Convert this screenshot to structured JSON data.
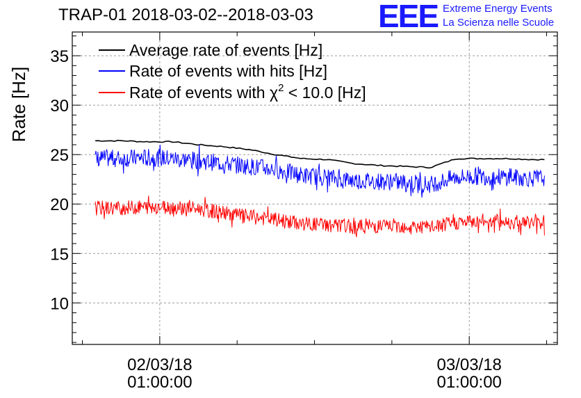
{
  "header": {
    "title": "TRAP-01 2018-03-02--2018-03-03",
    "logo_text": "EEE",
    "org_line1": "Extreme Energy Events",
    "org_line2": "La Scienza nelle Scuole"
  },
  "colors": {
    "average": "#000000",
    "hits": "#0000ff",
    "chi2": "#ff0000",
    "logo": "#1a1aff",
    "grid": "#9a9a9a"
  },
  "chart_data": {
    "type": "line",
    "title": "TRAP-01 2018-03-02--2018-03-03",
    "ylabel": "Rate [Hz]",
    "xlabel": "",
    "ylim": [
      5.8,
      37.4
    ],
    "xlim": [
      "2018-03-01 18:13",
      "2018-03-03 07:50"
    ],
    "yticks": [
      10,
      15,
      20,
      25,
      30,
      35
    ],
    "xticks": [
      {
        "date": "02/03/18",
        "time": "01:00:00",
        "t": "2018-03-02 01:00"
      },
      {
        "date": "03/03/18",
        "time": "01:00:00",
        "t": "2018-03-03 01:00"
      }
    ],
    "grid": true,
    "legend_position": "top-left",
    "series": [
      {
        "name": "Average rate of events [Hz]",
        "label_main": "Average rate of events [Hz]",
        "x": [
          "2018-03-01 22:00",
          "2018-03-02 00:00",
          "2018-03-02 02:00",
          "2018-03-02 04:00",
          "2018-03-02 06:00",
          "2018-03-02 08:00",
          "2018-03-02 10:00",
          "2018-03-02 12:00",
          "2018-03-02 14:00",
          "2018-03-02 16:00",
          "2018-03-02 18:00",
          "2018-03-02 20:00",
          "2018-03-02 22:00",
          "2018-03-03 00:00",
          "2018-03-03 02:00",
          "2018-03-03 04:00",
          "2018-03-03 06:00"
        ],
        "y": [
          26.4,
          26.3,
          26.3,
          26.0,
          25.8,
          25.5,
          25.0,
          24.6,
          24.5,
          24.1,
          23.9,
          23.8,
          23.7,
          24.6,
          24.6,
          24.6,
          24.5
        ]
      },
      {
        "name": "Rate of events with hits [Hz]",
        "label_main": "Rate of events with hits [Hz]",
        "x": [
          "2018-03-01 22:00",
          "2018-03-02 00:00",
          "2018-03-02 02:00",
          "2018-03-02 04:00",
          "2018-03-02 06:00",
          "2018-03-02 08:00",
          "2018-03-02 10:00",
          "2018-03-02 12:00",
          "2018-03-02 14:00",
          "2018-03-02 16:00",
          "2018-03-02 18:00",
          "2018-03-02 20:00",
          "2018-03-02 22:00",
          "2018-03-03 00:00",
          "2018-03-03 02:00",
          "2018-03-03 04:00",
          "2018-03-03 06:00"
        ],
        "y": [
          24.6,
          24.7,
          24.6,
          24.4,
          24.1,
          23.8,
          23.5,
          22.9,
          22.7,
          22.4,
          22.3,
          22.2,
          22.0,
          22.7,
          22.8,
          22.7,
          22.6
        ],
        "fluctuation": 0.9
      },
      {
        "name": "Rate of events with χ² < 10.0 [Hz]",
        "label_main": "Rate of events with χ",
        "label_sup": "2",
        "label_tail": " < 10.0 [Hz]",
        "x": [
          "2018-03-01 22:00",
          "2018-03-02 00:00",
          "2018-03-02 02:00",
          "2018-03-02 04:00",
          "2018-03-02 06:00",
          "2018-03-02 08:00",
          "2018-03-02 10:00",
          "2018-03-02 12:00",
          "2018-03-02 14:00",
          "2018-03-02 16:00",
          "2018-03-02 18:00",
          "2018-03-02 20:00",
          "2018-03-02 22:00",
          "2018-03-03 00:00",
          "2018-03-03 02:00",
          "2018-03-03 04:00",
          "2018-03-03 06:00"
        ],
        "y": [
          19.6,
          19.7,
          19.7,
          19.5,
          19.1,
          18.7,
          18.4,
          18.0,
          17.9,
          17.7,
          17.8,
          17.8,
          17.6,
          18.1,
          18.3,
          18.2,
          18.1
        ],
        "fluctuation": 0.75
      }
    ]
  }
}
